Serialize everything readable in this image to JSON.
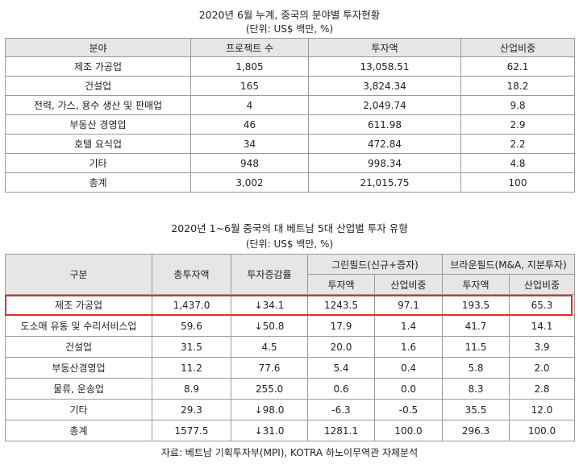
{
  "table1": {
    "title": "2020년 6월 누계, 중국의 분야별 투자현황",
    "unit": "(단위: US$ 백만, %)",
    "headers": [
      "분야",
      "프로젝트 수",
      "투자액",
      "산업비중"
    ],
    "rows": [
      [
        "제조 가공업",
        "1,805",
        "13,058.51",
        "62.1"
      ],
      [
        "건설업",
        "165",
        "3,824.34",
        "18.2"
      ],
      [
        "전력, 가스, 용수 생산 및 판매업",
        "4",
        "2,049.74",
        "9.8"
      ],
      [
        "부동산 경영업",
        "46",
        "611.98",
        "2.9"
      ],
      [
        "호텔 요식업",
        "34",
        "472.84",
        "2.2"
      ],
      [
        "기타",
        "948",
        "998.34",
        "4.8"
      ],
      [
        "총계",
        "3,002",
        "21,015.75",
        "100"
      ]
    ]
  },
  "table2": {
    "title": "2020년 1~6월 중국의 대 베트남 5대 산업별 투자 유형",
    "unit": "(단위: US$ 백만, %)",
    "headers": {
      "category": "구분",
      "total": "총투자액",
      "change": "투자증감률",
      "greenfield": "그린필드(신규+증자)",
      "brownfield": "브라운필드(M&A, 지분투자)",
      "amount": "투자액",
      "share": "산업비중"
    },
    "rows": [
      [
        "제조 가공업",
        "1,437.0",
        "↓34.1",
        "1243.5",
        "97.1",
        "193.5",
        "65.3"
      ],
      [
        "도소매 유통 및 수리서비스업",
        "59.6",
        "↓50.8",
        "17.9",
        "1.4",
        "41.7",
        "14.1"
      ],
      [
        "건설업",
        "31.5",
        "4.5",
        "20.0",
        "1.6",
        "11.5",
        "3.9"
      ],
      [
        "부동산경영업",
        "11.2",
        "77.6",
        "5.4",
        "0.4",
        "5.8",
        "2.0"
      ],
      [
        "물류, 운송업",
        "8.9",
        "255.0",
        "0.6",
        "0.0",
        "8.3",
        "2.8"
      ],
      [
        "기타",
        "29.3",
        "↓98.0",
        "-6.3",
        "-0.5",
        "35.5",
        "12.0"
      ],
      [
        "총계",
        "1577.5",
        "↓31.0",
        "1281.1",
        "100.0",
        "296.3",
        "100.0"
      ]
    ]
  },
  "source": "자료: 베트남 기획투자부(MPI), KOTRA 하노이무역관 자체분석",
  "colors": {
    "header_bg": "#e6e6e6",
    "border": "#9a9a9a",
    "highlight": "#d9332b"
  }
}
